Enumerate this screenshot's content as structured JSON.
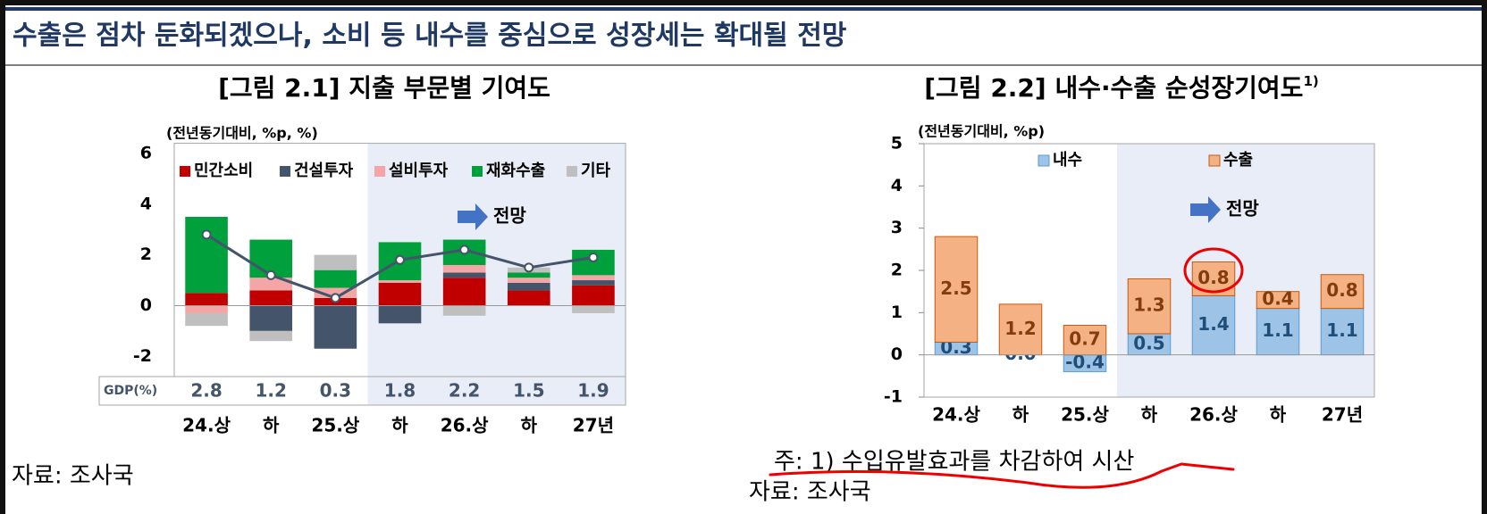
{
  "title": "수출은 점차 둔화되겠으나, 소비 등 내수를 중심으로 성장세는 확대될 전망",
  "chart_data": [
    {
      "type": "bar",
      "stacked": true,
      "title": "[그림 2.1] 지출 부문별 기여도",
      "unit": "(전년동기대비, %p, %)",
      "categories": [
        "24.상",
        "하",
        "25.상",
        "하",
        "26.상",
        "하",
        "27년"
      ],
      "series": [
        {
          "name": "민간소비",
          "color": "#c00000",
          "values": [
            0.5,
            0.6,
            0.3,
            0.9,
            1.1,
            0.6,
            0.8
          ]
        },
        {
          "name": "건설투자",
          "color": "#44546a",
          "values": [
            0,
            -1.0,
            -1.7,
            -0.7,
            0.2,
            0.3,
            0.2
          ]
        },
        {
          "name": "설비투자",
          "color": "#f4a6a6",
          "values": [
            -0.3,
            0.5,
            0.4,
            0.1,
            0.3,
            0.2,
            0.2
          ]
        },
        {
          "name": "재화수출",
          "color": "#00a03c",
          "values": [
            3.0,
            1.5,
            0.7,
            1.5,
            1.0,
            0.2,
            1.0
          ]
        },
        {
          "name": "기타",
          "color": "#bfbfbf",
          "values": [
            -0.5,
            -0.4,
            0.6,
            0,
            -0.4,
            0.2,
            -0.3
          ]
        }
      ],
      "line": {
        "label": "GDP(%)",
        "color": "#44546a",
        "values": [
          2.8,
          1.2,
          0.3,
          1.8,
          2.2,
          1.5,
          1.9
        ]
      },
      "ylim": [
        -2.8,
        6.4
      ],
      "yticks": [
        -2,
        0,
        2,
        4,
        6
      ],
      "annotation": "전망",
      "source": "자료: 조사국"
    },
    {
      "type": "bar",
      "stacked": true,
      "title": "[그림 2.2] 내수·수출 순성장기여도",
      "title_note": "1)",
      "unit": "(전년동기대비, %p)",
      "categories": [
        "24.상",
        "하",
        "25.상",
        "하",
        "26.상",
        "하",
        "27년"
      ],
      "series": [
        {
          "name": "내수",
          "color": "#9dc3e6",
          "edgecolor": "#5b9bd5",
          "label_color": "#1f4e79",
          "values": [
            0.3,
            0.0,
            -0.4,
            0.5,
            1.4,
            1.1,
            1.1
          ],
          "value_labels": [
            "0.3",
            "0.0",
            "-0.4",
            "0.5",
            "1.4",
            "1.1",
            "1.1"
          ]
        },
        {
          "name": "수출",
          "color": "#f4b183",
          "edgecolor": "#c55a11",
          "label_color": "#843c0c",
          "values": [
            2.5,
            1.2,
            0.7,
            1.3,
            0.8,
            0.4,
            0.8
          ]
        }
      ],
      "ylim": [
        -1,
        5
      ],
      "yticks": [
        -1,
        0,
        1,
        2,
        3,
        4,
        5
      ],
      "annotation": "전망",
      "note": "주: 1) 수입유발효과를 차감하여 시산",
      "source": "자료: 조사국"
    }
  ]
}
